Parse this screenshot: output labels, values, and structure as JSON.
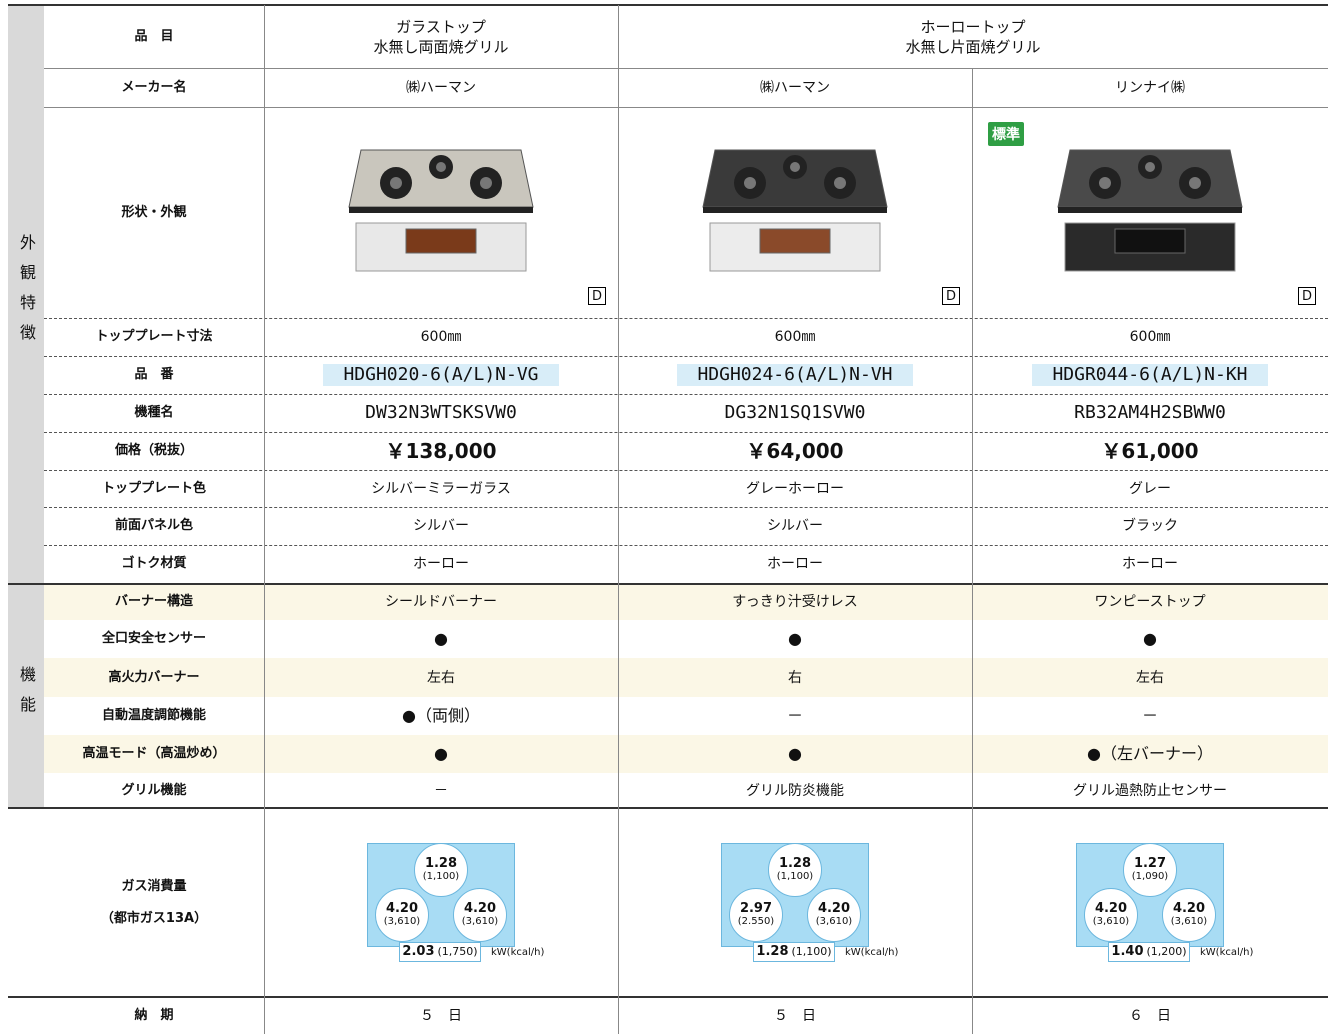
{
  "header": {
    "label": "品　目",
    "cells": [
      [
        "ガラストップ",
        "水無し両面焼グリル"
      ],
      [
        "ホーロートップ",
        "水無し片面焼グリル"
      ]
    ]
  },
  "groups": [
    "外観特徴",
    "機能"
  ],
  "maker": {
    "label": "メーカー名",
    "cells": [
      "㈱ハーマン",
      "㈱ハーマン",
      "リンナイ㈱"
    ]
  },
  "appearance": {
    "label": "形状・外観",
    "badge": "標準",
    "mark": "D"
  },
  "rows": [
    {
      "label": "トッププレート寸法",
      "cells": [
        "600㎜",
        "600㎜",
        "600㎜"
      ]
    },
    {
      "label": "品　番",
      "cells": [
        "HDGH020-6(A/L)N-VG",
        "HDGH024-6(A/L)N-VH",
        "HDGR044-6(A/L)N-KH"
      ]
    },
    {
      "label": "機種名",
      "cells": [
        "DW32N3WTSKSVW0",
        "DG32N1SQ1SVW0",
        "RB32AM4H2SBWW0"
      ]
    },
    {
      "label": "価格（税抜）",
      "cells": [
        "￥138,000",
        "￥64,000",
        "￥61,000"
      ]
    },
    {
      "label": "トッププレート色",
      "cells": [
        "シルバーミラーガラス",
        "グレーホーロー",
        "グレー"
      ]
    },
    {
      "label": "前面パネル色",
      "cells": [
        "シルバー",
        "シルバー",
        "ブラック"
      ]
    },
    {
      "label": "ゴトク材質",
      "cells": [
        "ホーロー",
        "ホーロー",
        "ホーロー"
      ]
    },
    {
      "label": "バーナー構造",
      "cells": [
        "シールドバーナー",
        "すっきり汁受けレス",
        "ワンピーストップ"
      ]
    },
    {
      "label": "全口安全センサー",
      "cells": [
        "●",
        "●",
        "●"
      ]
    },
    {
      "label": "高火力バーナー",
      "cells": [
        "左右",
        "右",
        "左右"
      ]
    },
    {
      "label": "自動温度調節機能",
      "cells": [
        "●（両側）",
        "－",
        "－"
      ]
    },
    {
      "label": "高温モード（高温炒め）",
      "cells": [
        "●",
        "●",
        "●（左バーナー）"
      ]
    },
    {
      "label": "グリル機能",
      "cells": [
        "－",
        "グリル防炎機能",
        "グリル過熱防止センサー"
      ]
    }
  ],
  "gas": {
    "label": [
      "ガス消費量",
      "（都市ガス13A）"
    ],
    "unit": "kW(kcal/h)",
    "diagrams": [
      {
        "burners": [
          [
            "1.28",
            "(1,100)"
          ],
          [
            "4.20",
            "(3,610)"
          ],
          [
            "4.20",
            "(3,610)"
          ]
        ],
        "grill": [
          "2.03",
          "(1,750)"
        ]
      },
      {
        "burners": [
          [
            "1.28",
            "(1,100)"
          ],
          [
            "2.97",
            "(2.550)"
          ],
          [
            "4.20",
            "(3,610)"
          ]
        ],
        "grill": [
          "1.28",
          "(1,100)"
        ]
      },
      {
        "burners": [
          [
            "1.27",
            "(1,090)"
          ],
          [
            "4.20",
            "(3,610)"
          ],
          [
            "4.20",
            "(3,610)"
          ]
        ],
        "grill": [
          "1.40",
          "(1,200)"
        ]
      }
    ]
  },
  "delivery": {
    "label": "納　期",
    "cells": [
      "５　日",
      "５　日",
      "６　日"
    ]
  }
}
